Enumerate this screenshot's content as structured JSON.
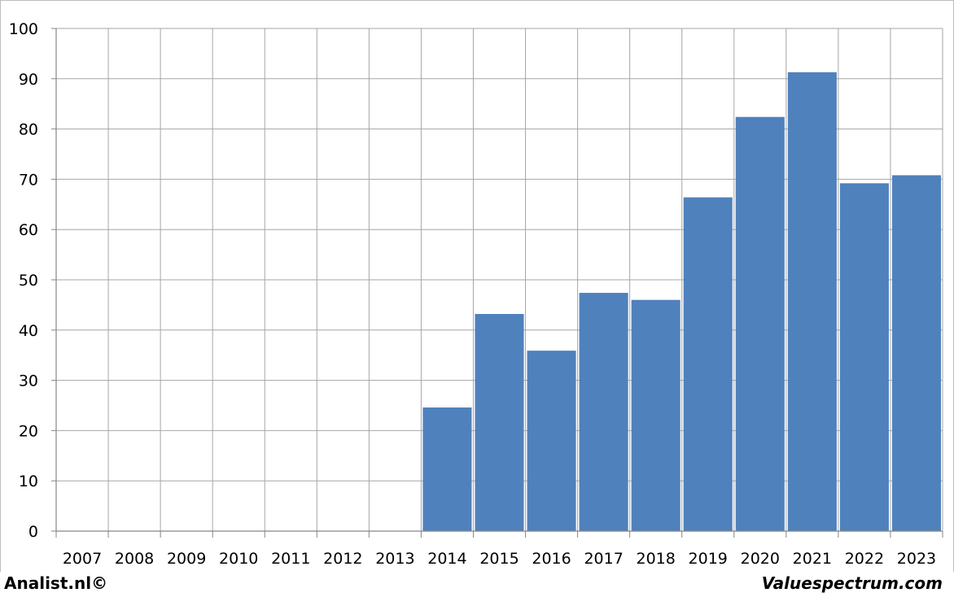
{
  "chart_data": {
    "type": "bar",
    "title": "",
    "xlabel": "",
    "ylabel": "",
    "categories": [
      "2007",
      "2008",
      "2009",
      "2010",
      "2011",
      "2012",
      "2013",
      "2014",
      "2015",
      "2016",
      "2017",
      "2018",
      "2019",
      "2020",
      "2021",
      "2022",
      "2023"
    ],
    "values": [
      null,
      null,
      null,
      null,
      null,
      null,
      null,
      24.6,
      43.2,
      35.9,
      47.4,
      46.0,
      66.4,
      82.4,
      91.3,
      69.2,
      70.8
    ],
    "ylim": [
      0,
      100
    ],
    "yticks": [
      "0",
      "10",
      "20",
      "30",
      "40",
      "50",
      "60",
      "70",
      "80",
      "90",
      "100"
    ],
    "grid": true,
    "bar_color": "#4f81bd",
    "grid_color": "#a6a6a6"
  },
  "footer": {
    "left": "Analist.nl©",
    "right": "Valuespectrum.com"
  }
}
